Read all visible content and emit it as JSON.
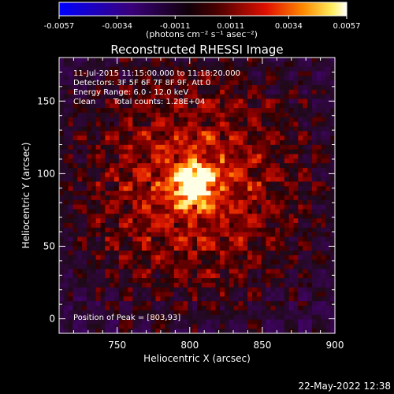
{
  "colorbar": {
    "ticks": [
      "-0.0057",
      "-0.0034",
      "-0.0011",
      "0.0011",
      "0.0034",
      "0.0057"
    ],
    "tick_values": [
      -0.0057,
      -0.0034,
      -0.0011,
      0.0011,
      0.0034,
      0.0057
    ],
    "range": [
      -0.0057,
      0.0057
    ],
    "unit_label": "(photons cm⁻² s⁻¹ asec⁻²)"
  },
  "chart_data": {
    "type": "heatmap",
    "title": "Reconstructed RHESSI Image",
    "xlabel": "Heliocentric X (arcsec)",
    "ylabel": "Heliocentric Y (arcsec)",
    "xlim": [
      710,
      900
    ],
    "ylim": [
      -10,
      180
    ],
    "x_ticks": [
      "750",
      "800",
      "850",
      "900"
    ],
    "x_tick_values": [
      750,
      800,
      850,
      900
    ],
    "y_ticks": [
      "0",
      "50",
      "100",
      "150"
    ],
    "y_tick_values": [
      0,
      50,
      100,
      150
    ],
    "peak": [
      803,
      93
    ],
    "grid": false,
    "annotations": {
      "time": "11-Jul-2015 11:15:00.000 to 11:18:20.000",
      "detectors": "Detectors: 3F 5F 6F 7F 8F 9F, Att 0",
      "energy": "Energy Range: 6.0 - 12.0 keV",
      "method": "Clean",
      "counts": "Total counts: 1.28E+04",
      "peak_text": "Position of Peak = [803,93]"
    }
  },
  "footer": {
    "timestamp": "22-May-2022 12:38"
  }
}
